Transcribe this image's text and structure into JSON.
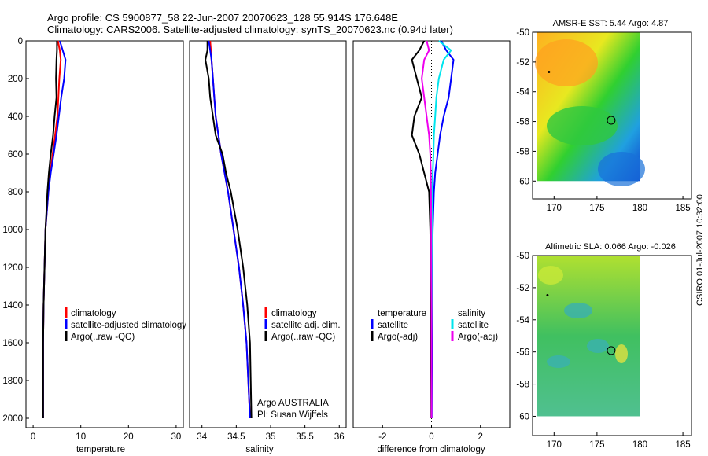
{
  "header": {
    "title_line1": "Argo profile: CS 5900877_58 22-Jun-2007 20070623_128 55.914S 176.648E",
    "title_line2": "Climatology: CARS2006. Satellite-adjusted climatology: synTS_20070623.nc (0.94d later)"
  },
  "side_label": "CSIRO 01-Jul-2007 10:32:00",
  "colors": {
    "climatology": "#ff0000",
    "satellite": "#0000ff",
    "argo": "#000000",
    "cyan": "#00e5ee",
    "magenta": "#ee00ee"
  },
  "chart_data": [
    {
      "id": "temperature",
      "type": "line",
      "xlabel": "temperature",
      "xlim": [
        -1.5,
        31.5
      ],
      "ylim": [
        2050,
        0
      ],
      "xticks": [
        "0",
        "10",
        "20",
        "30"
      ],
      "xtick_values": [
        0,
        10,
        20,
        30
      ],
      "yticks": [
        "0",
        "200",
        "400",
        "600",
        "800",
        "1000",
        "1200",
        "1400",
        "1600",
        "1800",
        "2000"
      ],
      "ytick_values": [
        0,
        200,
        400,
        600,
        800,
        1000,
        1200,
        1400,
        1600,
        1800,
        2000
      ],
      "legend": [
        "climatology",
        "satellite-adjusted climatology",
        "Argo(..raw -QC)"
      ],
      "series": [
        {
          "name": "climatology",
          "color_key": "climatology",
          "x": [
            5.2,
            5.6,
            5.8,
            5.5,
            5.3,
            5.1,
            4.6,
            4.1,
            3.6,
            3.2,
            2.6,
            2.4,
            2.2,
            2.1,
            2.1
          ],
          "y": [
            0,
            50,
            100,
            200,
            300,
            400,
            500,
            600,
            700,
            800,
            1000,
            1200,
            1400,
            1600,
            2000
          ]
        },
        {
          "name": "satellite-adjusted climatology",
          "color_key": "satellite",
          "x": [
            5.6,
            6.2,
            6.8,
            6.5,
            5.9,
            5.4,
            4.9,
            4.3,
            3.7,
            3.2,
            2.6,
            2.4,
            2.2,
            2.1,
            2.1
          ],
          "y": [
            0,
            50,
            100,
            200,
            300,
            400,
            500,
            600,
            700,
            800,
            1000,
            1200,
            1400,
            1600,
            2000
          ]
        },
        {
          "name": "Argo(..raw -QC)",
          "color_key": "argo",
          "x": [
            5.0,
            5.0,
            4.9,
            4.8,
            4.9,
            4.5,
            4.2,
            3.7,
            3.3,
            3.0,
            2.6,
            2.4,
            2.2,
            2.1,
            2.1
          ],
          "y": [
            0,
            50,
            100,
            200,
            300,
            400,
            500,
            600,
            700,
            800,
            1000,
            1200,
            1400,
            1600,
            2000
          ]
        }
      ]
    },
    {
      "id": "salinity",
      "type": "line",
      "xlabel": "salinity",
      "xlim": [
        33.82,
        36.1
      ],
      "ylim": [
        2050,
        0
      ],
      "xticks": [
        "34",
        "34.5",
        "35",
        "35.5",
        "36"
      ],
      "xtick_values": [
        34,
        34.5,
        35,
        35.5,
        36
      ],
      "legend": [
        "climatology",
        "satellite adj. clim.",
        "Argo(..raw -QC)"
      ],
      "annotation_line1": "Argo AUSTRALIA",
      "annotation_line2": "PI: Susan Wijffels",
      "series": [
        {
          "name": "climatology",
          "color_key": "climatology",
          "x": [
            34.12,
            34.13,
            34.14,
            34.16,
            34.18,
            34.2,
            34.24,
            34.28,
            34.33,
            34.38,
            34.46,
            34.54,
            34.6,
            34.65,
            34.7
          ],
          "y": [
            0,
            50,
            100,
            200,
            300,
            400,
            500,
            600,
            700,
            800,
            1000,
            1200,
            1400,
            1600,
            2000
          ]
        },
        {
          "name": "satellite adj. clim.",
          "color_key": "satellite",
          "x": [
            34.1,
            34.12,
            34.14,
            34.16,
            34.18,
            34.2,
            34.24,
            34.28,
            34.33,
            34.38,
            34.46,
            34.54,
            34.6,
            34.65,
            34.7
          ],
          "y": [
            0,
            50,
            100,
            200,
            300,
            400,
            500,
            600,
            700,
            800,
            1000,
            1200,
            1400,
            1600,
            2000
          ]
        },
        {
          "name": "Argo(..raw -QC)",
          "color_key": "argo",
          "x": [
            34.08,
            34.08,
            34.05,
            34.1,
            34.12,
            34.16,
            34.2,
            34.3,
            34.35,
            34.42,
            34.52,
            34.6,
            34.66,
            34.7,
            34.72
          ],
          "y": [
            0,
            50,
            100,
            200,
            300,
            400,
            500,
            600,
            700,
            800,
            1000,
            1200,
            1400,
            1600,
            2000
          ]
        }
      ]
    },
    {
      "id": "difference",
      "type": "line",
      "xlabel": "difference from climatology",
      "xlim": [
        -3.2,
        3.2
      ],
      "ylim": [
        2050,
        0
      ],
      "xticks": [
        "-2",
        "0",
        "2"
      ],
      "xtick_values": [
        -2,
        0,
        2
      ],
      "legend_left_title": "temperature",
      "legend_right_title": "salinity",
      "legend_left": [
        "satellite",
        "Argo(-adj)"
      ],
      "legend_right": [
        "satellite",
        "Argo(-adj)"
      ],
      "series": [
        {
          "name": "temperature satellite",
          "color_key": "satellite",
          "x": [
            0.4,
            0.6,
            0.9,
            0.8,
            0.7,
            0.5,
            0.35,
            0.25,
            0.15,
            0.1,
            0.05,
            0.03,
            0.02,
            0.02,
            0.01
          ],
          "y": [
            0,
            50,
            100,
            200,
            300,
            400,
            500,
            600,
            700,
            800,
            1000,
            1200,
            1400,
            1600,
            2000
          ]
        },
        {
          "name": "temperature Argo(-adj)",
          "color_key": "argo",
          "x": [
            -0.3,
            -0.5,
            -0.8,
            -0.6,
            -0.4,
            -0.7,
            -0.8,
            -0.5,
            -0.3,
            -0.1,
            -0.05,
            -0.03,
            -0.02,
            -0.02,
            -0.01
          ],
          "y": [
            0,
            50,
            100,
            200,
            300,
            400,
            500,
            600,
            700,
            800,
            1000,
            1200,
            1400,
            1600,
            2000
          ]
        },
        {
          "name": "salinity satellite",
          "color_key": "cyan",
          "x": [
            0.3,
            0.8,
            0.5,
            0.3,
            0.2,
            0.15,
            0.1,
            0.08,
            0.05,
            0.03,
            0.02,
            0.01,
            0.01,
            0.0,
            0.0
          ],
          "y": [
            0,
            50,
            100,
            200,
            300,
            400,
            500,
            600,
            700,
            800,
            1000,
            1200,
            1400,
            1600,
            2000
          ]
        },
        {
          "name": "salinity Argo(-adj)",
          "color_key": "magenta",
          "x": [
            -0.2,
            -0.1,
            -0.3,
            -0.4,
            -0.3,
            -0.2,
            -0.1,
            -0.05,
            -0.03,
            -0.02,
            -0.01,
            -0.01,
            0.0,
            0.0,
            0.0
          ],
          "y": [
            0,
            50,
            100,
            200,
            300,
            400,
            500,
            600,
            700,
            800,
            1000,
            1200,
            1400,
            1600,
            2000
          ]
        }
      ]
    },
    {
      "id": "amsre-sst",
      "type": "heatmap",
      "title": "AMSR-E SST: 5.44  Argo: 4.87",
      "xlim": [
        167.5,
        186
      ],
      "ylim": [
        -61.2,
        -50
      ],
      "xticks": [
        "170",
        "175",
        "180",
        "185"
      ],
      "xtick_values": [
        170,
        175,
        180,
        185
      ],
      "yticks": [
        "-50",
        "-52",
        "-54",
        "-56",
        "-58",
        "-60"
      ],
      "ytick_values": [
        -50,
        -52,
        -54,
        -56,
        -58,
        -60
      ],
      "data_extent": {
        "lon": [
          168,
          180
        ],
        "lat": [
          -60,
          -50
        ]
      },
      "profile_marker": {
        "lon": 176.648,
        "lat": -55.914
      }
    },
    {
      "id": "altimetric-sla",
      "type": "heatmap",
      "title": "Altimetric SLA: 0.066  Argo: -0.026",
      "xlim": [
        167.5,
        186
      ],
      "ylim": [
        -61.2,
        -50
      ],
      "xticks": [
        "170",
        "175",
        "180",
        "185"
      ],
      "xtick_values": [
        170,
        175,
        180,
        185
      ],
      "yticks": [
        "-50",
        "-52",
        "-54",
        "-56",
        "-58",
        "-60"
      ],
      "ytick_values": [
        -50,
        -52,
        -54,
        -56,
        -58,
        -60
      ],
      "data_extent": {
        "lon": [
          168,
          180
        ],
        "lat": [
          -60,
          -50
        ]
      },
      "profile_marker": {
        "lon": 176.648,
        "lat": -55.914
      }
    }
  ]
}
